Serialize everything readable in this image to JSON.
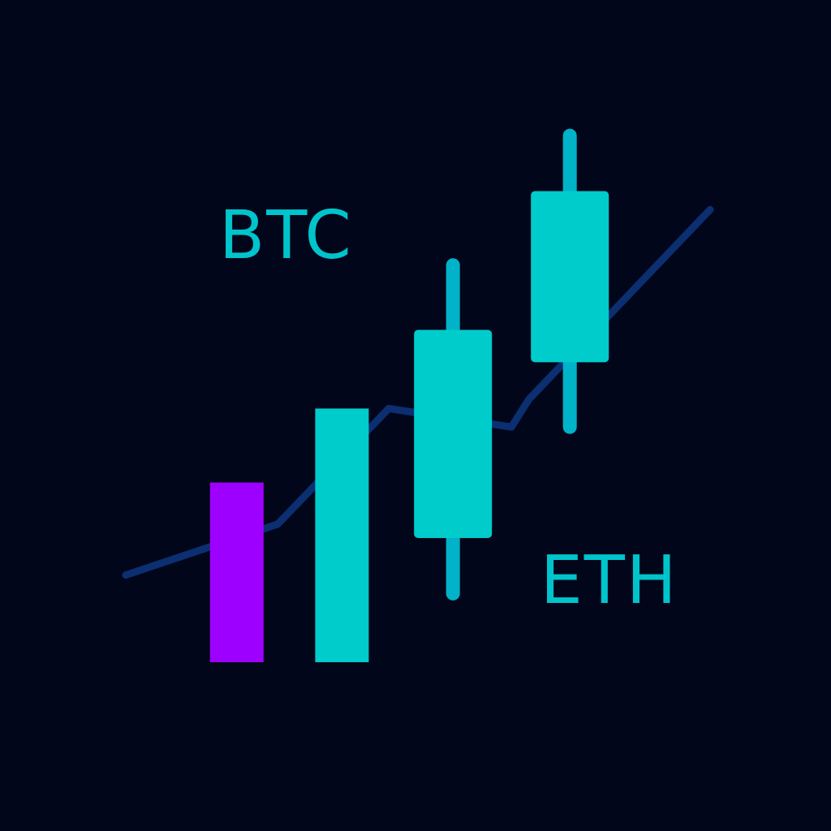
{
  "colors": {
    "background": "#02061a",
    "candle": "#00cccc",
    "wick": "#00b3c8",
    "line": "#0b2f70",
    "bar_purple": "#9d00ff",
    "bar_cyan": "#00cccc",
    "label": "#00c4cc"
  },
  "labels": {
    "btc": "BTC",
    "eth": "ETH"
  },
  "chart_data": {
    "type": "line",
    "ylim": [
      0,
      100
    ],
    "xlim": [
      0,
      100
    ],
    "line_series": {
      "x": [
        0,
        26,
        45,
        66,
        69,
        100
      ],
      "y": [
        2,
        13,
        38,
        34,
        40,
        81
      ]
    },
    "candles": [
      {
        "x": 56,
        "low": -2,
        "open": 10,
        "close": 55,
        "high": 69
      },
      {
        "x": 76,
        "low": 34,
        "open": 48,
        "close": 85,
        "high": 97
      }
    ],
    "bars": [
      {
        "x": 19,
        "value": 22,
        "color_key": "bar_purple"
      },
      {
        "x": 37,
        "value": 38,
        "color_key": "bar_cyan"
      }
    ]
  }
}
